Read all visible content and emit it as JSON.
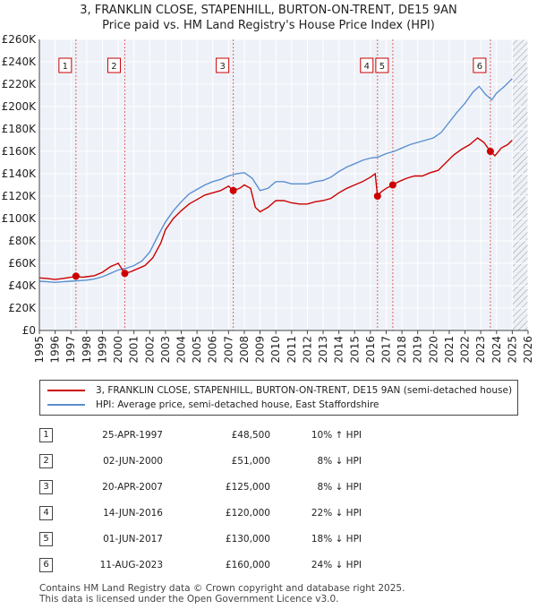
{
  "chart_data": {
    "type": "line",
    "title": "3, FRANKLIN CLOSE, STAPENHILL, BURTON-ON-TRENT, DE15 9AN",
    "subtitle": "Price paid vs. HM Land Registry's House Price Index (HPI)",
    "xlabel": "",
    "ylabel": "",
    "xlim": [
      1995,
      2026
    ],
    "ylim": [
      0,
      260000
    ],
    "x_ticks": [
      "1995",
      "1996",
      "1997",
      "1998",
      "1999",
      "2000",
      "2001",
      "2002",
      "2003",
      "2004",
      "2005",
      "2006",
      "2007",
      "2008",
      "2009",
      "2010",
      "2011",
      "2012",
      "2013",
      "2014",
      "2015",
      "2016",
      "2017",
      "2018",
      "2019",
      "2020",
      "2021",
      "2022",
      "2023",
      "2024",
      "2025",
      "2026"
    ],
    "y_ticks": [
      {
        "value": 0,
        "label": "£0"
      },
      {
        "value": 20000,
        "label": "£20K"
      },
      {
        "value": 40000,
        "label": "£40K"
      },
      {
        "value": 60000,
        "label": "£60K"
      },
      {
        "value": 80000,
        "label": "£80K"
      },
      {
        "value": 100000,
        "label": "£100K"
      },
      {
        "value": 120000,
        "label": "£120K"
      },
      {
        "value": 140000,
        "label": "£140K"
      },
      {
        "value": 160000,
        "label": "£160K"
      },
      {
        "value": 180000,
        "label": "£180K"
      },
      {
        "value": 200000,
        "label": "£200K"
      },
      {
        "value": 220000,
        "label": "£220K"
      },
      {
        "value": 240000,
        "label": "£240K"
      },
      {
        "value": 260000,
        "label": "£260K"
      }
    ],
    "grid": true,
    "future_hatch_from": 2025.0,
    "legend_position": "below chart",
    "series": [
      {
        "name": "3, FRANKLIN CLOSE, STAPENHILL, BURTON-ON-TRENT, DE15 9AN (semi-detached house)",
        "color": "#cc0000",
        "points": [
          [
            1995.0,
            47000
          ],
          [
            1995.5,
            46500
          ],
          [
            1996.0,
            45500
          ],
          [
            1996.5,
            46500
          ],
          [
            1997.0,
            47500
          ],
          [
            1997.32,
            48500
          ],
          [
            1997.7,
            47500
          ],
          [
            1998.0,
            48000
          ],
          [
            1998.5,
            49000
          ],
          [
            1999.0,
            52000
          ],
          [
            1999.5,
            57000
          ],
          [
            2000.0,
            60000
          ],
          [
            2000.42,
            51000
          ],
          [
            2000.8,
            52500
          ],
          [
            2001.2,
            55000
          ],
          [
            2001.7,
            58000
          ],
          [
            2002.2,
            65000
          ],
          [
            2002.7,
            78000
          ],
          [
            2003.0,
            90000
          ],
          [
            2003.5,
            100000
          ],
          [
            2004.0,
            107000
          ],
          [
            2004.5,
            113000
          ],
          [
            2005.0,
            117000
          ],
          [
            2005.5,
            121000
          ],
          [
            2006.0,
            123000
          ],
          [
            2006.5,
            125000
          ],
          [
            2007.0,
            129000
          ],
          [
            2007.3,
            125000
          ],
          [
            2007.7,
            127000
          ],
          [
            2008.0,
            130000
          ],
          [
            2008.4,
            127000
          ],
          [
            2008.7,
            110000
          ],
          [
            2009.0,
            106000
          ],
          [
            2009.5,
            110000
          ],
          [
            2010.0,
            116000
          ],
          [
            2010.5,
            116000
          ],
          [
            2011.0,
            114000
          ],
          [
            2011.5,
            113000
          ],
          [
            2012.0,
            113000
          ],
          [
            2012.5,
            115000
          ],
          [
            2013.0,
            116000
          ],
          [
            2013.5,
            118000
          ],
          [
            2014.0,
            123000
          ],
          [
            2014.5,
            127000
          ],
          [
            2015.0,
            130000
          ],
          [
            2015.5,
            133000
          ],
          [
            2016.0,
            137000
          ],
          [
            2016.3,
            140000
          ],
          [
            2016.45,
            120000
          ],
          [
            2016.7,
            124000
          ],
          [
            2017.0,
            127000
          ],
          [
            2017.42,
            130000
          ],
          [
            2017.8,
            133000
          ],
          [
            2018.3,
            136000
          ],
          [
            2018.8,
            138000
          ],
          [
            2019.3,
            138000
          ],
          [
            2019.8,
            141000
          ],
          [
            2020.3,
            143000
          ],
          [
            2020.8,
            150000
          ],
          [
            2021.3,
            157000
          ],
          [
            2021.8,
            162000
          ],
          [
            2022.3,
            166000
          ],
          [
            2022.8,
            172000
          ],
          [
            2023.2,
            168000
          ],
          [
            2023.61,
            160000
          ],
          [
            2023.9,
            156000
          ],
          [
            2024.3,
            163000
          ],
          [
            2024.7,
            166000
          ],
          [
            2025.0,
            170000
          ]
        ]
      },
      {
        "name": "HPI: Average price, semi-detached house, East Staffordshire",
        "color": "#5b8fd0",
        "points": [
          [
            1995.0,
            44000
          ],
          [
            1995.5,
            43500
          ],
          [
            1996.0,
            43000
          ],
          [
            1996.5,
            43500
          ],
          [
            1997.0,
            44000
          ],
          [
            1997.5,
            44500
          ],
          [
            1998.0,
            45000
          ],
          [
            1998.5,
            46000
          ],
          [
            1999.0,
            48000
          ],
          [
            1999.5,
            51000
          ],
          [
            2000.0,
            54000
          ],
          [
            2000.5,
            55500
          ],
          [
            2001.0,
            58000
          ],
          [
            2001.5,
            62000
          ],
          [
            2002.0,
            70000
          ],
          [
            2002.5,
            84000
          ],
          [
            2003.0,
            97000
          ],
          [
            2003.5,
            107000
          ],
          [
            2004.0,
            115000
          ],
          [
            2004.5,
            122000
          ],
          [
            2005.0,
            126000
          ],
          [
            2005.5,
            130000
          ],
          [
            2006.0,
            133000
          ],
          [
            2006.5,
            135000
          ],
          [
            2007.0,
            138000
          ],
          [
            2007.5,
            140000
          ],
          [
            2008.0,
            141000
          ],
          [
            2008.5,
            136000
          ],
          [
            2009.0,
            125000
          ],
          [
            2009.5,
            127000
          ],
          [
            2010.0,
            133000
          ],
          [
            2010.5,
            133000
          ],
          [
            2011.0,
            131000
          ],
          [
            2011.5,
            131000
          ],
          [
            2012.0,
            131000
          ],
          [
            2012.5,
            133000
          ],
          [
            2013.0,
            134000
          ],
          [
            2013.5,
            137000
          ],
          [
            2014.0,
            142000
          ],
          [
            2014.5,
            146000
          ],
          [
            2015.0,
            149000
          ],
          [
            2015.5,
            152000
          ],
          [
            2016.0,
            154000
          ],
          [
            2016.5,
            155000
          ],
          [
            2017.0,
            158000
          ],
          [
            2017.5,
            160000
          ],
          [
            2018.0,
            163000
          ],
          [
            2018.5,
            166000
          ],
          [
            2019.0,
            168000
          ],
          [
            2019.5,
            170000
          ],
          [
            2020.0,
            172000
          ],
          [
            2020.5,
            177000
          ],
          [
            2021.0,
            186000
          ],
          [
            2021.5,
            195000
          ],
          [
            2022.0,
            203000
          ],
          [
            2022.5,
            213000
          ],
          [
            2022.9,
            218000
          ],
          [
            2023.3,
            211000
          ],
          [
            2023.7,
            206000
          ],
          [
            2024.0,
            212000
          ],
          [
            2024.5,
            218000
          ],
          [
            2025.0,
            225000
          ]
        ]
      }
    ],
    "sales": [
      {
        "num": "1",
        "x": 1997.32,
        "price": 48500
      },
      {
        "num": "2",
        "x": 2000.42,
        "price": 51000
      },
      {
        "num": "3",
        "x": 2007.3,
        "price": 125000
      },
      {
        "num": "4",
        "x": 2016.45,
        "price": 120000
      },
      {
        "num": "5",
        "x": 2017.42,
        "price": 130000
      },
      {
        "num": "6",
        "x": 2023.61,
        "price": 160000
      }
    ]
  },
  "legend": {
    "property": "3, FRANKLIN CLOSE, STAPENHILL, BURTON-ON-TRENT, DE15 9AN (semi-detached house)",
    "hpi": "HPI: Average price, semi-detached house, East Staffordshire"
  },
  "table": [
    {
      "num": "1",
      "date": "25-APR-1997",
      "price": "£48,500",
      "hpi": "10% ↑ HPI"
    },
    {
      "num": "2",
      "date": "02-JUN-2000",
      "price": "£51,000",
      "hpi": "8% ↓ HPI"
    },
    {
      "num": "3",
      "date": "20-APR-2007",
      "price": "£125,000",
      "hpi": "8% ↓ HPI"
    },
    {
      "num": "4",
      "date": "14-JUN-2016",
      "price": "£120,000",
      "hpi": "22% ↓ HPI"
    },
    {
      "num": "5",
      "date": "01-JUN-2017",
      "price": "£130,000",
      "hpi": "18% ↓ HPI"
    },
    {
      "num": "6",
      "date": "11-AUG-2023",
      "price": "£160,000",
      "hpi": "24% ↓ HPI"
    }
  ],
  "footer": {
    "line1": "Contains HM Land Registry data © Crown copyright and database right 2025.",
    "line2": "This data is licensed under the Open Government Licence v3.0."
  }
}
